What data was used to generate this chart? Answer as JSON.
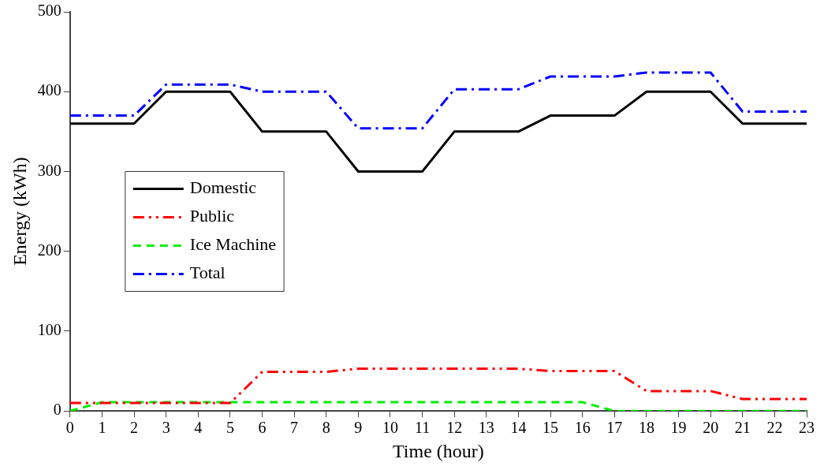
{
  "chart_data": {
    "type": "line",
    "xlabel": "Time (hour)",
    "ylabel": "Energy (kWh)",
    "x": [
      0,
      1,
      2,
      3,
      4,
      5,
      6,
      7,
      8,
      9,
      10,
      11,
      12,
      13,
      14,
      15,
      16,
      17,
      18,
      19,
      20,
      21,
      22,
      23
    ],
    "xlim": [
      0,
      23
    ],
    "xticks": [
      0,
      1,
      2,
      3,
      4,
      5,
      6,
      7,
      8,
      9,
      10,
      11,
      12,
      13,
      14,
      15,
      16,
      17,
      18,
      19,
      20,
      21,
      22,
      23
    ],
    "ylim": [
      0,
      500
    ],
    "yticks": [
      0,
      100,
      200,
      300,
      400,
      500
    ],
    "grid": false,
    "legend": "left",
    "marker": "none",
    "series": [
      {
        "name": "Domestic",
        "color": "#000000",
        "line_style": "solid",
        "values": [
          360,
          360,
          360,
          400,
          400,
          400,
          350,
          350,
          350,
          300,
          300,
          300,
          350,
          350,
          350,
          370,
          370,
          370,
          400,
          400,
          400,
          360,
          360,
          360
        ]
      },
      {
        "name": "Public",
        "color": "#ff0000",
        "line_style": "dashdotdot",
        "values": [
          10,
          10,
          10,
          10,
          10,
          10,
          49,
          49,
          49,
          53,
          53,
          53,
          53,
          53,
          53,
          50,
          50,
          50,
          25,
          25,
          25,
          15,
          15,
          15
        ]
      },
      {
        "name": "Ice Machine",
        "color": "#00ee00",
        "line_style": "dashed",
        "values": [
          0,
          11,
          11,
          11,
          11,
          11,
          11,
          11,
          11,
          11,
          11,
          11,
          11,
          11,
          11,
          11,
          11,
          0,
          0,
          0,
          0,
          0,
          0,
          0
        ]
      },
      {
        "name": "Total",
        "color": "#0000ff",
        "line_style": "dashdot",
        "values": [
          370,
          370,
          370,
          409,
          409,
          409,
          400,
          400,
          400,
          354,
          354,
          354,
          403,
          403,
          403,
          419,
          419,
          419,
          424,
          424,
          424,
          375,
          375,
          375
        ]
      }
    ]
  }
}
